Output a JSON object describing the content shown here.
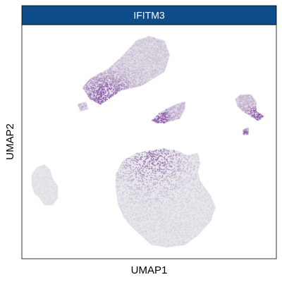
{
  "chart_data": {
    "type": "scatter",
    "title": "IFITM3",
    "xlabel": "UMAP1",
    "ylabel": "UMAP2",
    "grid": false,
    "legend": "none",
    "ticks": "none",
    "colors": {
      "strip": "#0f4c8a",
      "low": "#d6d6dc",
      "high": "#8c5aa8",
      "panel_border": "#000000",
      "background": "#ffffff"
    },
    "x_range": [
      0,
      1
    ],
    "y_range": [
      0,
      1
    ],
    "series": [
      {
        "clusters": [
          {
            "id": "top-left-large",
            "polygon": [
              [
                0.24,
                0.73
              ],
              [
                0.27,
                0.77
              ],
              [
                0.34,
                0.81
              ],
              [
                0.4,
                0.87
              ],
              [
                0.45,
                0.93
              ],
              [
                0.5,
                0.95
              ],
              [
                0.56,
                0.93
              ],
              [
                0.58,
                0.87
              ],
              [
                0.56,
                0.8
              ],
              [
                0.5,
                0.76
              ],
              [
                0.47,
                0.74
              ],
              [
                0.43,
                0.73
              ],
              [
                0.39,
                0.72
              ],
              [
                0.35,
                0.69
              ],
              [
                0.31,
                0.66
              ],
              [
                0.27,
                0.68
              ]
            ],
            "mean_expression": 0.25,
            "hotspot": [
              0.33,
              0.68
            ],
            "hotspot_level": 0.85
          },
          {
            "id": "top-left-fragments",
            "polygon": [
              [
                0.22,
                0.66
              ],
              [
                0.25,
                0.67
              ],
              [
                0.26,
                0.64
              ],
              [
                0.23,
                0.63
              ]
            ],
            "mean_expression": 0.2,
            "hotspot": [
              0.24,
              0.65
            ],
            "hotspot_level": 0.4
          },
          {
            "id": "middle-small",
            "polygon": [
              [
                0.51,
                0.59
              ],
              [
                0.54,
                0.62
              ],
              [
                0.57,
                0.64
              ],
              [
                0.61,
                0.66
              ],
              [
                0.64,
                0.67
              ],
              [
                0.64,
                0.64
              ],
              [
                0.62,
                0.6
              ],
              [
                0.59,
                0.59
              ],
              [
                0.56,
                0.58
              ],
              [
                0.53,
                0.58
              ]
            ],
            "mean_expression": 0.45,
            "hotspot": [
              0.54,
              0.6
            ],
            "hotspot_level": 0.9
          },
          {
            "id": "right-small",
            "polygon": [
              [
                0.84,
                0.68
              ],
              [
                0.86,
                0.7
              ],
              [
                0.9,
                0.7
              ],
              [
                0.92,
                0.67
              ],
              [
                0.92,
                0.63
              ],
              [
                0.95,
                0.61
              ],
              [
                0.93,
                0.59
              ],
              [
                0.9,
                0.61
              ],
              [
                0.87,
                0.63
              ],
              [
                0.85,
                0.65
              ]
            ],
            "mean_expression": 0.45,
            "hotspot": [
              0.92,
              0.61
            ],
            "hotspot_level": 1.0
          },
          {
            "id": "right-satellite",
            "polygon": [
              [
                0.87,
                0.55
              ],
              [
                0.89,
                0.56
              ],
              [
                0.89,
                0.53
              ],
              [
                0.87,
                0.53
              ]
            ],
            "mean_expression": 0.5,
            "hotspot": [
              0.88,
              0.54
            ],
            "hotspot_level": 0.8
          },
          {
            "id": "bottom-large",
            "polygon": [
              [
                0.4,
                0.42
              ],
              [
                0.45,
                0.45
              ],
              [
                0.5,
                0.46
              ],
              [
                0.56,
                0.47
              ],
              [
                0.61,
                0.46
              ],
              [
                0.65,
                0.44
              ],
              [
                0.69,
                0.45
              ],
              [
                0.7,
                0.41
              ],
              [
                0.69,
                0.37
              ],
              [
                0.7,
                0.33
              ],
              [
                0.74,
                0.27
              ],
              [
                0.76,
                0.22
              ],
              [
                0.74,
                0.16
              ],
              [
                0.69,
                0.1
              ],
              [
                0.64,
                0.06
              ],
              [
                0.57,
                0.05
              ],
              [
                0.51,
                0.06
              ],
              [
                0.47,
                0.1
              ],
              [
                0.43,
                0.14
              ],
              [
                0.4,
                0.18
              ],
              [
                0.38,
                0.23
              ],
              [
                0.37,
                0.3
              ],
              [
                0.37,
                0.36
              ]
            ],
            "mean_expression": 0.05,
            "hotspot": [
              0.51,
              0.43
            ],
            "hotspot_level": 0.75
          },
          {
            "id": "bottom-left",
            "polygon": [
              [
                0.04,
                0.36
              ],
              [
                0.06,
                0.39
              ],
              [
                0.09,
                0.4
              ],
              [
                0.11,
                0.38
              ],
              [
                0.12,
                0.34
              ],
              [
                0.14,
                0.31
              ],
              [
                0.14,
                0.26
              ],
              [
                0.12,
                0.23
              ],
              [
                0.09,
                0.23
              ],
              [
                0.07,
                0.26
              ],
              [
                0.05,
                0.28
              ],
              [
                0.04,
                0.32
              ]
            ],
            "mean_expression": 0.0,
            "hotspot": [
              0.09,
              0.3
            ],
            "hotspot_level": 0.0
          }
        ]
      }
    ]
  }
}
